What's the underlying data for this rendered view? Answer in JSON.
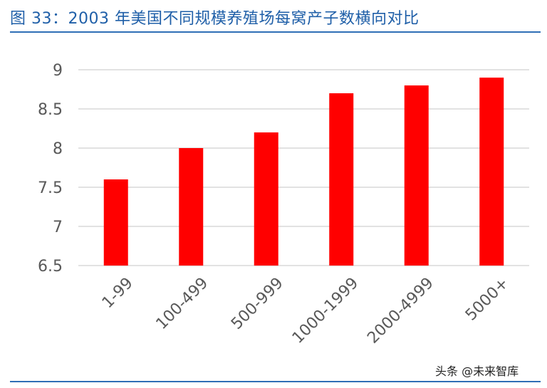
{
  "figure_title": "图 33：2003 年美国不同规模养殖场每窝产子数横向对比",
  "watermark": "头条 @未来智库",
  "chart_data": {
    "type": "bar",
    "title": "",
    "xlabel": "",
    "ylabel": "",
    "categories": [
      "1-99",
      "100-499",
      "500-999",
      "1000-1999",
      "2000-4999",
      "5000+"
    ],
    "values": [
      7.6,
      8.0,
      8.2,
      8.7,
      8.8,
      8.9
    ],
    "ylim": [
      6.5,
      9
    ],
    "yticks": [
      6.5,
      7,
      7.5,
      8,
      8.5,
      9
    ],
    "ytick_labels": [
      "6.5",
      "7",
      "7.5",
      "8",
      "8.5",
      "9"
    ],
    "grid": true,
    "legend": "none",
    "bar_color": "#ff0000",
    "grid_color": "#d9d9d9",
    "tick_color": "#595959"
  }
}
